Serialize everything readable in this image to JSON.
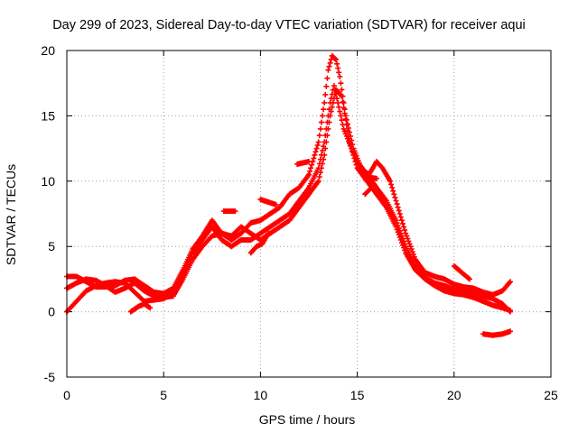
{
  "chart_data": {
    "type": "scatter",
    "title": "Day 299 of 2023, Sidereal Day-to-day VTEC variation (SDTVAR) for receiver aqui",
    "xlabel": "GPS time / hours",
    "ylabel": "SDTVAR / TECUs",
    "xlim": [
      0,
      25
    ],
    "ylim": [
      -5,
      20
    ],
    "xticks": [
      "0",
      "5",
      "10",
      "15",
      "20",
      "25"
    ],
    "yticks": [
      "-5",
      "0",
      "5",
      "10",
      "15",
      "20"
    ],
    "grid": true,
    "marker": "+",
    "series": [
      {
        "name": "SDTVAR",
        "color": "#ff0000",
        "tracks": [
          [
            [
              0.0,
              0.0
            ],
            [
              0.5,
              0.8
            ],
            [
              1.0,
              1.6
            ],
            [
              1.5,
              2.0
            ],
            [
              2.0,
              2.2
            ],
            [
              2.5,
              2.3
            ],
            [
              3.0,
              2.2
            ],
            [
              3.5,
              1.5
            ],
            [
              4.0,
              0.8
            ],
            [
              4.5,
              0.9
            ],
            [
              5.0,
              1.0
            ],
            [
              5.5,
              1.5
            ],
            [
              6.0,
              3.0
            ],
            [
              6.5,
              4.5
            ],
            [
              7.0,
              5.5
            ],
            [
              7.5,
              6.5
            ],
            [
              8.0,
              5.5
            ],
            [
              8.5,
              5.0
            ],
            [
              9.0,
              5.5
            ],
            [
              9.5,
              5.5
            ],
            [
              10.0,
              6.0
            ],
            [
              10.5,
              6.5
            ],
            [
              11.0,
              7.0
            ],
            [
              11.5,
              7.5
            ],
            [
              12.0,
              8.5
            ],
            [
              12.5,
              9.5
            ],
            [
              13.0,
              11.0
            ],
            [
              13.3,
              13.0
            ],
            [
              13.6,
              16.0
            ],
            [
              13.8,
              17.3
            ],
            [
              14.0,
              16.0
            ],
            [
              14.3,
              14.0
            ],
            [
              14.7,
              12.5
            ],
            [
              15.0,
              11.5
            ],
            [
              15.5,
              10.5
            ],
            [
              16.0,
              9.5
            ],
            [
              16.5,
              8.5
            ],
            [
              17.0,
              7.0
            ],
            [
              17.5,
              5.0
            ],
            [
              18.0,
              3.5
            ],
            [
              18.5,
              2.6
            ],
            [
              19.0,
              2.2
            ],
            [
              19.5,
              2.0
            ],
            [
              20.0,
              1.7
            ],
            [
              20.5,
              1.5
            ],
            [
              21.0,
              1.4
            ],
            [
              21.5,
              1.2
            ],
            [
              22.0,
              1.0
            ],
            [
              22.5,
              0.6
            ],
            [
              22.9,
              0.0
            ]
          ],
          [
            [
              0.0,
              2.7
            ],
            [
              0.5,
              2.7
            ],
            [
              1.0,
              2.3
            ],
            [
              1.5,
              1.9
            ],
            [
              2.0,
              1.9
            ],
            [
              2.5,
              2.0
            ],
            [
              3.0,
              2.4
            ],
            [
              3.5,
              2.5
            ],
            [
              4.0,
              2.0
            ],
            [
              4.5,
              1.5
            ],
            [
              5.0,
              1.4
            ],
            [
              5.5,
              1.8
            ],
            [
              6.0,
              3.2
            ],
            [
              6.5,
              4.8
            ],
            [
              7.0,
              5.8
            ],
            [
              7.5,
              7.0
            ],
            [
              8.0,
              6.0
            ],
            [
              8.5,
              5.5
            ],
            [
              9.0,
              6.0
            ],
            [
              9.5,
              6.8
            ],
            [
              10.0,
              7.0
            ],
            [
              10.5,
              7.5
            ],
            [
              11.0,
              8.0
            ],
            [
              11.5,
              9.0
            ],
            [
              12.0,
              9.5
            ],
            [
              12.5,
              10.5
            ],
            [
              13.0,
              13.0
            ],
            [
              13.3,
              16.0
            ],
            [
              13.5,
              18.5
            ],
            [
              13.7,
              19.6
            ],
            [
              13.9,
              19.3
            ],
            [
              14.1,
              18.0
            ],
            [
              14.4,
              15.0
            ],
            [
              14.8,
              12.5
            ],
            [
              15.2,
              11.0
            ],
            [
              15.6,
              10.5
            ],
            [
              16.0,
              11.5
            ],
            [
              16.3,
              11.0
            ],
            [
              16.7,
              10.0
            ],
            [
              17.0,
              8.5
            ],
            [
              17.5,
              6.0
            ],
            [
              18.0,
              4.0
            ],
            [
              18.5,
              3.0
            ],
            [
              19.0,
              2.7
            ],
            [
              19.5,
              2.5
            ],
            [
              20.0,
              2.1
            ],
            [
              20.5,
              1.9
            ],
            [
              21.0,
              1.8
            ],
            [
              21.5,
              1.5
            ],
            [
              22.0,
              1.3
            ],
            [
              22.5,
              1.6
            ],
            [
              22.9,
              2.3
            ]
          ],
          [
            [
              0.0,
              1.8
            ],
            [
              0.5,
              2.2
            ],
            [
              1.0,
              2.5
            ],
            [
              1.5,
              2.4
            ],
            [
              2.0,
              2.0
            ],
            [
              2.5,
              1.5
            ],
            [
              3.0,
              1.8
            ],
            [
              3.5,
              2.2
            ],
            [
              4.0,
              1.6
            ],
            [
              4.5,
              1.2
            ],
            [
              5.0,
              1.1
            ],
            [
              5.5,
              1.2
            ],
            [
              6.0,
              2.5
            ],
            [
              6.5,
              4.0
            ],
            [
              7.0,
              5.0
            ],
            [
              7.5,
              5.8
            ],
            [
              8.0,
              6.0
            ],
            [
              8.5,
              5.8
            ],
            [
              9.0,
              6.5
            ],
            [
              9.5,
              6.0
            ],
            [
              10.0,
              5.5
            ],
            [
              10.5,
              6.0
            ],
            [
              11.0,
              6.5
            ],
            [
              11.5,
              7.0
            ],
            [
              12.0,
              8.0
            ],
            [
              12.5,
              9.0
            ],
            [
              13.0,
              10.0
            ],
            [
              13.3,
              12.0
            ],
            [
              13.6,
              15.0
            ],
            [
              13.9,
              17.0
            ],
            [
              14.2,
              16.5
            ],
            [
              14.6,
              13.0
            ],
            [
              15.0,
              11.0
            ],
            [
              15.5,
              10.0
            ],
            [
              16.0,
              9.0
            ],
            [
              16.5,
              8.0
            ],
            [
              17.0,
              6.5
            ],
            [
              17.5,
              4.5
            ],
            [
              18.0,
              3.2
            ],
            [
              18.5,
              2.5
            ],
            [
              19.0,
              2.0
            ],
            [
              19.5,
              1.6
            ],
            [
              20.0,
              1.4
            ],
            [
              20.5,
              1.3
            ],
            [
              21.0,
              1.1
            ],
            [
              21.5,
              0.8
            ],
            [
              22.0,
              0.5
            ],
            [
              22.5,
              0.3
            ],
            [
              22.9,
              0.1
            ]
          ],
          [
            [
              3.3,
              0.0
            ],
            [
              3.7,
              0.4
            ],
            [
              4.0,
              0.6
            ],
            [
              4.3,
              0.3
            ]
          ],
          [
            [
              8.1,
              7.7
            ],
            [
              8.4,
              7.7
            ],
            [
              8.7,
              7.7
            ]
          ],
          [
            [
              9.5,
              4.5
            ],
            [
              9.8,
              5.0
            ],
            [
              10.1,
              5.2
            ],
            [
              10.4,
              6.0
            ]
          ],
          [
            [
              10.0,
              8.6
            ],
            [
              10.4,
              8.4
            ],
            [
              10.8,
              8.2
            ]
          ],
          [
            [
              11.9,
              11.3
            ],
            [
              12.2,
              11.4
            ],
            [
              12.5,
              11.5
            ]
          ],
          [
            [
              15.3,
              10.5
            ],
            [
              15.6,
              10.3
            ],
            [
              16.0,
              10.2
            ]
          ],
          [
            [
              15.4,
              9.0
            ],
            [
              15.6,
              9.3
            ],
            [
              15.8,
              9.6
            ]
          ],
          [
            [
              20.0,
              3.5
            ],
            [
              20.4,
              3.0
            ],
            [
              20.8,
              2.5
            ]
          ],
          [
            [
              21.5,
              -1.7
            ],
            [
              22.0,
              -1.8
            ],
            [
              22.5,
              -1.7
            ],
            [
              22.9,
              -1.5
            ]
          ]
        ]
      }
    ]
  }
}
